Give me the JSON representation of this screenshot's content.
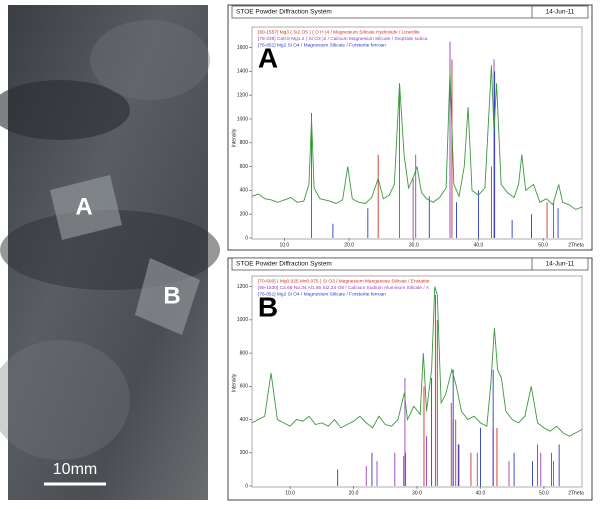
{
  "photo": {
    "labels": [
      "A",
      "B"
    ],
    "scale_bar": "10mm"
  },
  "chart_data": [
    {
      "type": "line",
      "title": "STOE Powder Diffraction System",
      "date": "14-Jun-11",
      "panel_label": "A",
      "ylabel": "Intensity",
      "xlabel": "2Theta",
      "color": "#3c9a3c",
      "x": [
        5,
        6,
        7,
        8,
        9,
        10,
        11,
        12,
        13,
        13.8,
        14.2,
        14.6,
        15.5,
        17,
        18,
        19,
        19.8,
        20.5,
        21.5,
        22.5,
        23.5,
        24.5,
        25.3,
        26.2,
        27.0,
        27.8,
        28.5,
        29.2,
        30.0,
        30.5,
        31.2,
        32,
        33,
        34,
        35,
        35.6,
        36.2,
        37,
        37.8,
        38.4,
        39,
        40,
        41,
        42.0,
        42.4,
        42.8,
        43.5,
        44.5,
        45.5,
        46.2,
        46.7,
        47.3,
        48.5,
        49.5,
        50.5,
        51.5,
        52.4,
        53,
        54,
        55,
        56
      ],
      "values": [
        350,
        370,
        330,
        320,
        300,
        320,
        340,
        300,
        310,
        450,
        1000,
        420,
        330,
        310,
        290,
        320,
        600,
        330,
        300,
        290,
        340,
        500,
        330,
        360,
        450,
        1300,
        700,
        420,
        520,
        600,
        380,
        330,
        300,
        340,
        420,
        1400,
        450,
        350,
        600,
        1100,
        400,
        360,
        420,
        1450,
        900,
        1300,
        450,
        380,
        340,
        450,
        700,
        400,
        450,
        300,
        330,
        280,
        450,
        300,
        280,
        240,
        260
      ],
      "phases": [
        {
          "name": "[80-1557] Mg3 ( Si2 O5 ) ( O H )4 / Magnesium Silicate Hydroxide / Lizardite",
          "color": "#d03020",
          "x": [
            14.2,
            24.5,
            35.9,
            42.0,
            50.6
          ],
          "values": [
            1050,
            700,
            1500,
            600,
            300
          ]
        },
        {
          "name": "[78-238] Ca0.8 Mg1.2 ( Si O3 )2 / Calcium Magnesium Silicate / Diopside subca",
          "color": "#9a3cc0",
          "x": [
            27.8,
            29.9,
            30.3,
            35.6,
            42.4,
            51.6
          ],
          "values": [
            1300,
            500,
            700,
            1650,
            1500,
            300
          ]
        },
        {
          "name": "[76-851] Mg2 Si O4 / Magnesium Silicate / Forsterite ferroan",
          "color": "#2a3cc8",
          "x": [
            17.5,
            22.9,
            32.4,
            36.6,
            40.0,
            42.5,
            45.2,
            48.2,
            52.3
          ],
          "values": [
            120,
            250,
            350,
            300,
            400,
            1400,
            150,
            200,
            250
          ]
        }
      ],
      "xlim": [
        5,
        56
      ],
      "ylim": [
        0,
        1680
      ],
      "xticks": [
        {
          "value": 10,
          "label": "10.0"
        },
        {
          "value": 20,
          "label": "20.0"
        },
        {
          "value": 30,
          "label": "30.0"
        },
        {
          "value": 40,
          "label": "40.0"
        },
        {
          "value": 50,
          "label": "50.0"
        }
      ],
      "yticks": [
        0,
        200,
        400,
        600,
        800,
        1000,
        1200,
        1400,
        1600
      ]
    },
    {
      "type": "line",
      "title": "STOE Powder Diffraction System",
      "date": "14-Jun-11",
      "panel_label": "B",
      "ylabel": "Intensity",
      "xlabel": "2Theta",
      "color": "#3c9a3c",
      "x": [
        4,
        5,
        6,
        7,
        8,
        9,
        10,
        11,
        12,
        13,
        14,
        15,
        16,
        17,
        18,
        19,
        20,
        21,
        22,
        23,
        24,
        25,
        26,
        27,
        28,
        28.5,
        29.5,
        30.5,
        31,
        31.5,
        32.3,
        32.8,
        33.2,
        33.8,
        34.5,
        35.5,
        36.2,
        37,
        38,
        39,
        40,
        41,
        41.6,
        42.2,
        42.7,
        43.3,
        44,
        45,
        46,
        47,
        48,
        49,
        50,
        51,
        52,
        53,
        54,
        55,
        56
      ],
      "values": [
        380,
        400,
        420,
        680,
        400,
        380,
        360,
        400,
        390,
        420,
        370,
        380,
        360,
        400,
        350,
        370,
        390,
        420,
        380,
        350,
        420,
        370,
        360,
        400,
        560,
        400,
        480,
        430,
        800,
        450,
        700,
        1200,
        1150,
        500,
        550,
        700,
        600,
        450,
        400,
        420,
        380,
        360,
        600,
        950,
        700,
        650,
        450,
        400,
        380,
        420,
        600,
        380,
        350,
        330,
        360,
        320,
        300,
        320,
        340
      ],
      "phases": [
        {
          "name": "[70-690] ( Mg0.925 Mn0.075 ) Si O3 / Magnesium Manganese Silicate / Enstatite",
          "color": "#d03020",
          "x": [
            28.2,
            31.1,
            32.9,
            33.2,
            35.4,
            36.1,
            38.5,
            42.6,
            49.0,
            51.2
          ],
          "values": [
            200,
            600,
            1150,
            1000,
            500,
            400,
            200,
            350,
            250,
            200
          ]
        },
        {
          "name": "[89-1830] Ca.66 Na.34 Al1.66 Si2.34 O8 / Calcium Sodium Aluminum Silicate / A",
          "color": "#9a3cc0",
          "x": [
            22.0,
            23.7,
            26.5,
            27.9,
            28.1,
            31.5,
            35.7,
            36.5,
            39.5,
            42.0,
            44.5,
            49.5,
            51.5
          ],
          "values": [
            120,
            150,
            200,
            180,
            650,
            300,
            400,
            250,
            200,
            350,
            150,
            200,
            150
          ]
        },
        {
          "name": "[76-851] Mg2 Si O4 / Magnesium Silicate / Forsterite ferroan",
          "color": "#2a3cc8",
          "x": [
            17.5,
            22.9,
            32.3,
            35.7,
            36.6,
            40.0,
            42.0,
            45.3,
            48.2,
            52.4
          ],
          "values": [
            100,
            200,
            650,
            700,
            250,
            350,
            700,
            200,
            150,
            250
          ]
        }
      ],
      "xlim": [
        4,
        56
      ],
      "ylim": [
        0,
        1240
      ],
      "xticks": [
        {
          "value": 10,
          "label": "10.0"
        },
        {
          "value": 20,
          "label": "20.0"
        },
        {
          "value": 30,
          "label": "30.0"
        },
        {
          "value": 40,
          "label": "40.0"
        },
        {
          "value": 50,
          "label": "50.0"
        }
      ],
      "yticks": [
        0,
        200,
        400,
        600,
        800,
        1000,
        1200
      ]
    }
  ]
}
